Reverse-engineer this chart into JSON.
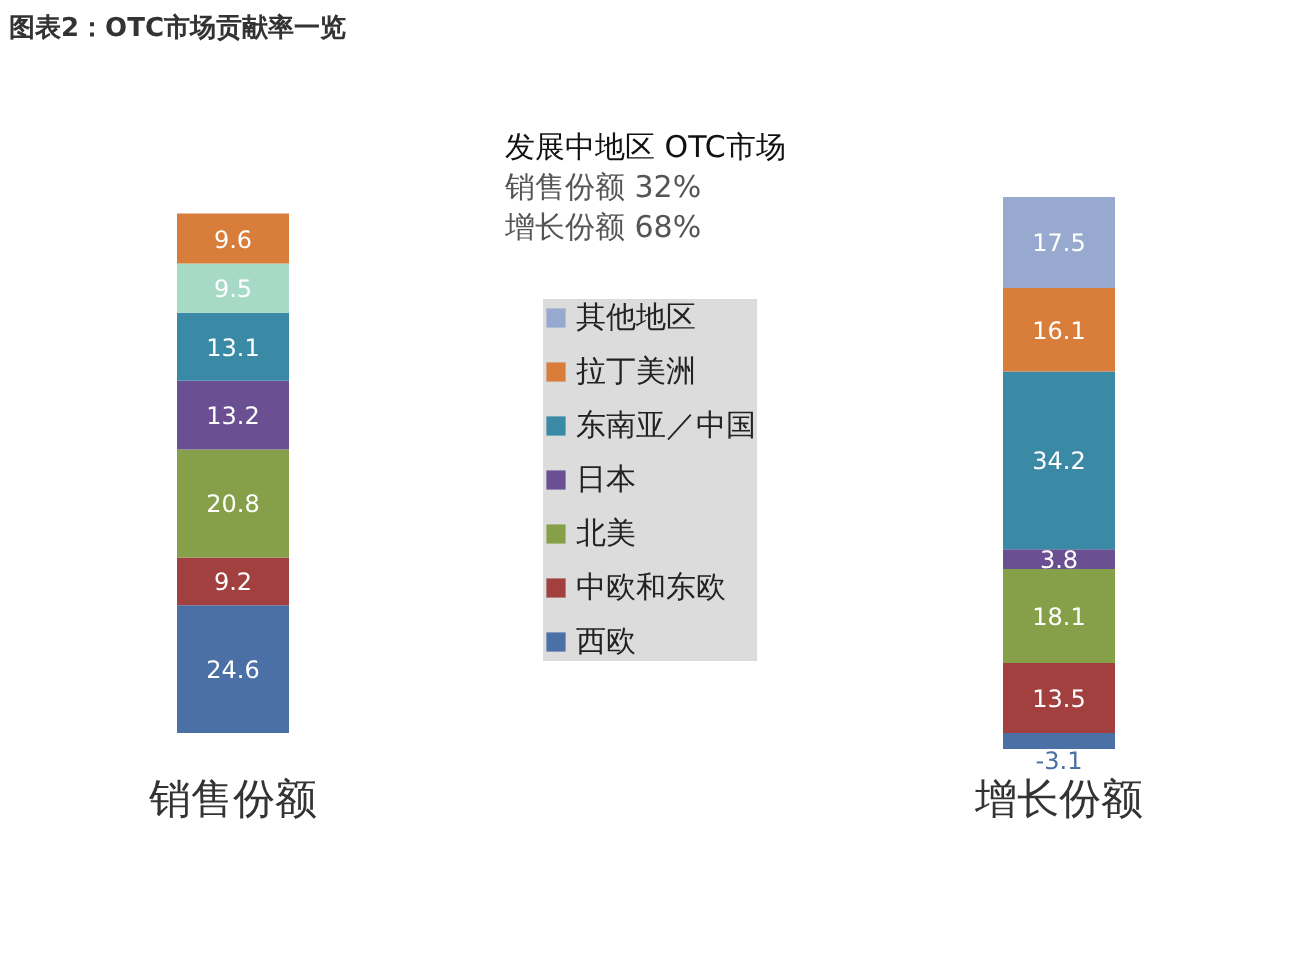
{
  "chart_data": {
    "type": "bar",
    "title": "图表2：OTC市场贡献率一览",
    "categories": [
      "销售份额",
      "增长份额"
    ],
    "stacked": true,
    "data_labels": true,
    "legend": "center",
    "annotations": [
      "发展中地区 OTC市场",
      "销售份额 32%",
      "增长份额 68%"
    ],
    "series": [
      {
        "name": "西欧",
        "color": "#4a70a6",
        "values": [
          24.6,
          -3.1
        ]
      },
      {
        "name": "中欧和东欧",
        "color": "#a23f3f",
        "values": [
          9.2,
          13.5
        ]
      },
      {
        "name": "北美",
        "color": "#86a04a",
        "values": [
          20.8,
          18.1
        ]
      },
      {
        "name": "日本",
        "color": "#6a4f92",
        "values": [
          13.2,
          3.8
        ]
      },
      {
        "name": "东南亚／中国",
        "color": "#3a8aa6",
        "values": [
          13.1,
          34.2
        ]
      },
      {
        "color": "#a6d9c6",
        "values": [
          9.5,
          null
        ]
      },
      {
        "name": "拉丁美洲",
        "color": "#d97d3a",
        "values": [
          9.6,
          16.1
        ]
      },
      {
        "name": "其他地区",
        "color": "#98a9cf",
        "values": [
          null,
          17.5
        ]
      }
    ]
  }
}
